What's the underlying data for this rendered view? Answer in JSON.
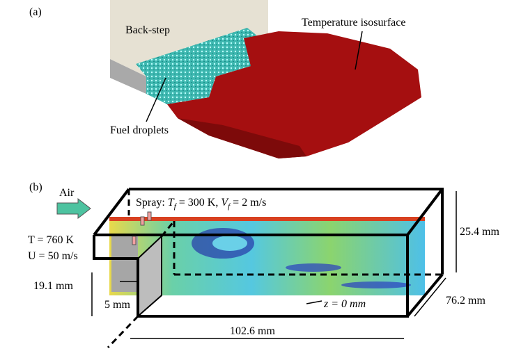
{
  "panel_a": {
    "label": "(a)",
    "annotations": [
      "Back-step",
      "Temperature isosurface",
      "Fuel droplets"
    ]
  },
  "panel_b": {
    "label": "(b)",
    "inflow": "Air",
    "spray": {
      "parts": [
        "Spray: ",
        "T",
        "f",
        " = 300 K, ",
        "V",
        "f",
        " = 2 m/s"
      ]
    },
    "conditions": [
      "T = 760 K",
      "U = 50 m/s"
    ],
    "dimensions": [
      "25.4 mm",
      "19.1 mm",
      "5 mm",
      "76.2 mm",
      "102.6 mm"
    ],
    "plane": "z = 0 mm"
  }
}
